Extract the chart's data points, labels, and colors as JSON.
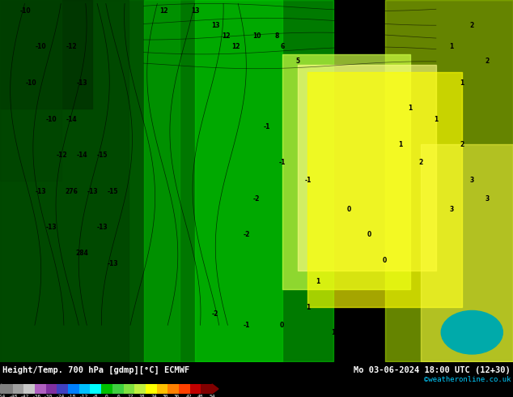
{
  "title_left": "Height/Temp. 700 hPa [gdmp][°C] ECMWF",
  "title_right": "Mo 03-06-2024 18:00 UTC (12+30)",
  "credit": "©weatheronline.co.uk",
  "colorbar_ticks": [
    -54,
    -48,
    -42,
    -36,
    -30,
    -24,
    -18,
    -12,
    -8,
    0,
    6,
    12,
    18,
    24,
    30,
    36,
    42,
    48,
    54
  ],
  "colorbar_colors": [
    "#808080",
    "#a0a0a0",
    "#c8c8c8",
    "#b060c0",
    "#8030a0",
    "#4040c0",
    "#0080ff",
    "#00c0ff",
    "#00ffff",
    "#00c000",
    "#40d040",
    "#80e040",
    "#c0f040",
    "#ffff00",
    "#ffc000",
    "#ff8000",
    "#ff4000",
    "#c00000",
    "#800000"
  ],
  "map_bg_color": "#00cc00",
  "bottom_bar_height": 0.09
}
